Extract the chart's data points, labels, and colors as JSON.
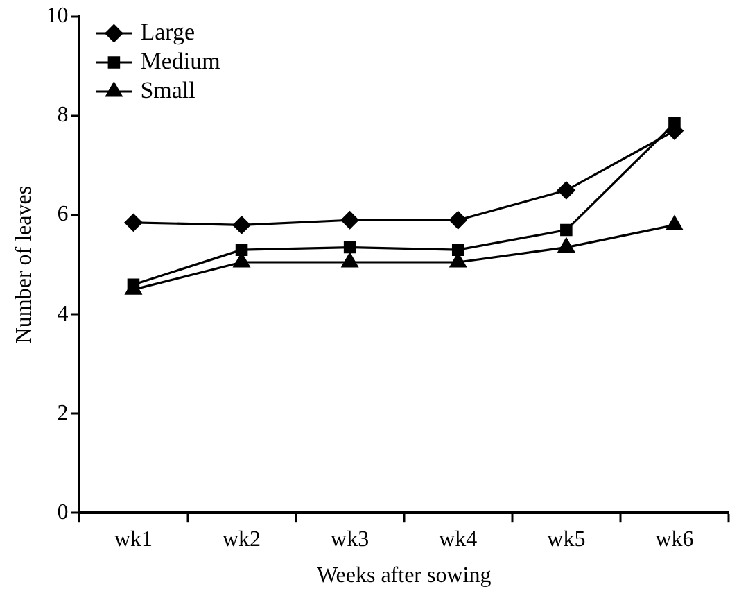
{
  "chart_data": {
    "type": "line",
    "xlabel": "Weeks after sowing",
    "ylabel": "Number of leaves",
    "categories": [
      "wk1",
      "wk2",
      "wk3",
      "wk4",
      "wk5",
      "wk6"
    ],
    "series": [
      {
        "name": "Large",
        "color": "#000000",
        "marker": "diamond",
        "values": [
          5.85,
          5.8,
          5.9,
          5.9,
          6.5,
          7.7
        ]
      },
      {
        "name": "Medium",
        "color": "#000000",
        "marker": "square",
        "values": [
          4.6,
          5.3,
          5.35,
          5.3,
          5.7,
          7.85
        ]
      },
      {
        "name": "Small",
        "color": "#000000",
        "marker": "triangle",
        "values": [
          4.5,
          5.05,
          5.05,
          5.05,
          5.35,
          5.8
        ]
      }
    ],
    "ylim": [
      0,
      10
    ],
    "yticks": [
      0,
      2,
      4,
      6,
      8,
      10
    ],
    "grid": false,
    "legend": "top left",
    "line_style": "solid"
  }
}
